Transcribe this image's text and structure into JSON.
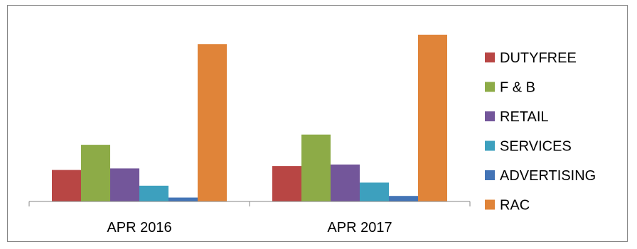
{
  "chart_data": {
    "type": "bar",
    "categories": [
      "APR 2016",
      "APR 2017"
    ],
    "series": [
      {
        "name": "DUTYFREE",
        "color": "#B84644",
        "values": [
          40,
          45
        ]
      },
      {
        "name": "F & B",
        "color": "#8DAB47",
        "values": [
          72,
          85
        ]
      },
      {
        "name": "RETAIL",
        "color": "#73569A",
        "values": [
          42,
          47
        ]
      },
      {
        "name": "SERVICES",
        "color": "#3DA0BE",
        "values": [
          20,
          24
        ]
      },
      {
        "name": "ADVERTISING",
        "color": "#4374B6",
        "values": [
          5,
          7
        ]
      },
      {
        "name": "RAC",
        "color": "#E08439",
        "values": [
          200,
          212
        ]
      }
    ],
    "title": "",
    "xlabel": "",
    "ylabel": "",
    "ylim": [
      0,
      220
    ],
    "grid": false,
    "legend": "right"
  }
}
